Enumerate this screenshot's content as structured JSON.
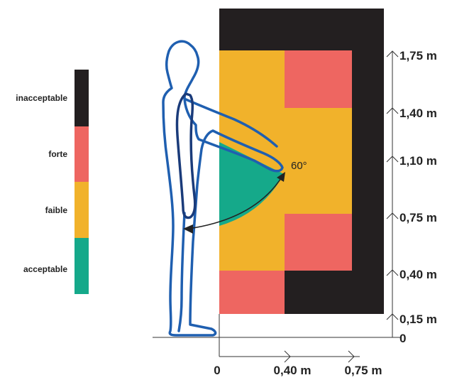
{
  "legend": {
    "items": [
      {
        "label": "inacceptable",
        "color": "#231f20"
      },
      {
        "label": "forte",
        "color": "#ee6661"
      },
      {
        "label": "faible",
        "color": "#f1b22b"
      },
      {
        "label": "acceptable",
        "color": "#15a98a"
      }
    ]
  },
  "angle": {
    "label": "60°",
    "color": "#15a98a"
  },
  "vertical_axis": {
    "labels": [
      "1,75 m",
      "1,40 m",
      "1,10 m",
      "0,75 m",
      "0,40 m",
      "0,15 m",
      "0"
    ]
  },
  "horizontal_axis": {
    "labels": [
      "0",
      "0,40 m",
      "0,75 m"
    ]
  },
  "zones": {
    "inacceptable": "#231f20",
    "forte": "#ee6661",
    "faible": "#f1b22b",
    "acceptable": "#15a98a"
  },
  "figure": {
    "outline_color": "#1f5fb0",
    "arm_color": "#1a3b7a"
  }
}
